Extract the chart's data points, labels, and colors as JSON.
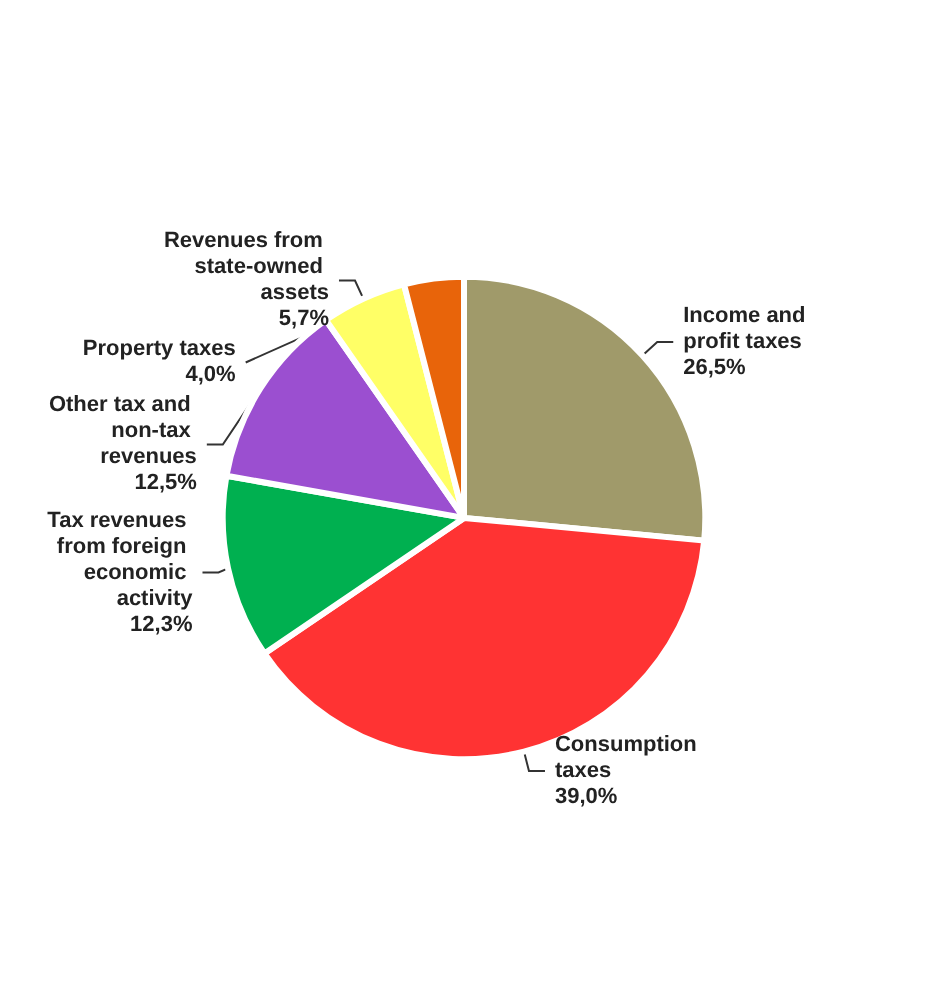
{
  "chart_data": {
    "type": "pie",
    "categories": [
      "Income and profit taxes",
      "Consumption taxes",
      "Tax revenues from foreign economic activity",
      "Other tax and non-tax revenues",
      "Revenues from state-owned assets",
      "Property taxes"
    ],
    "values": [
      26.5,
      39.0,
      12.3,
      12.5,
      5.7,
      4.0
    ],
    "value_labels": [
      "26,5%",
      "39,0%",
      "12,3%",
      "12,5%",
      "5,7%",
      "4,0%"
    ],
    "colors": [
      "#a09a6a",
      "#ff3333",
      "#00b050",
      "#9b4fd0",
      "#ffff66",
      "#e8640a"
    ],
    "legend": false
  }
}
